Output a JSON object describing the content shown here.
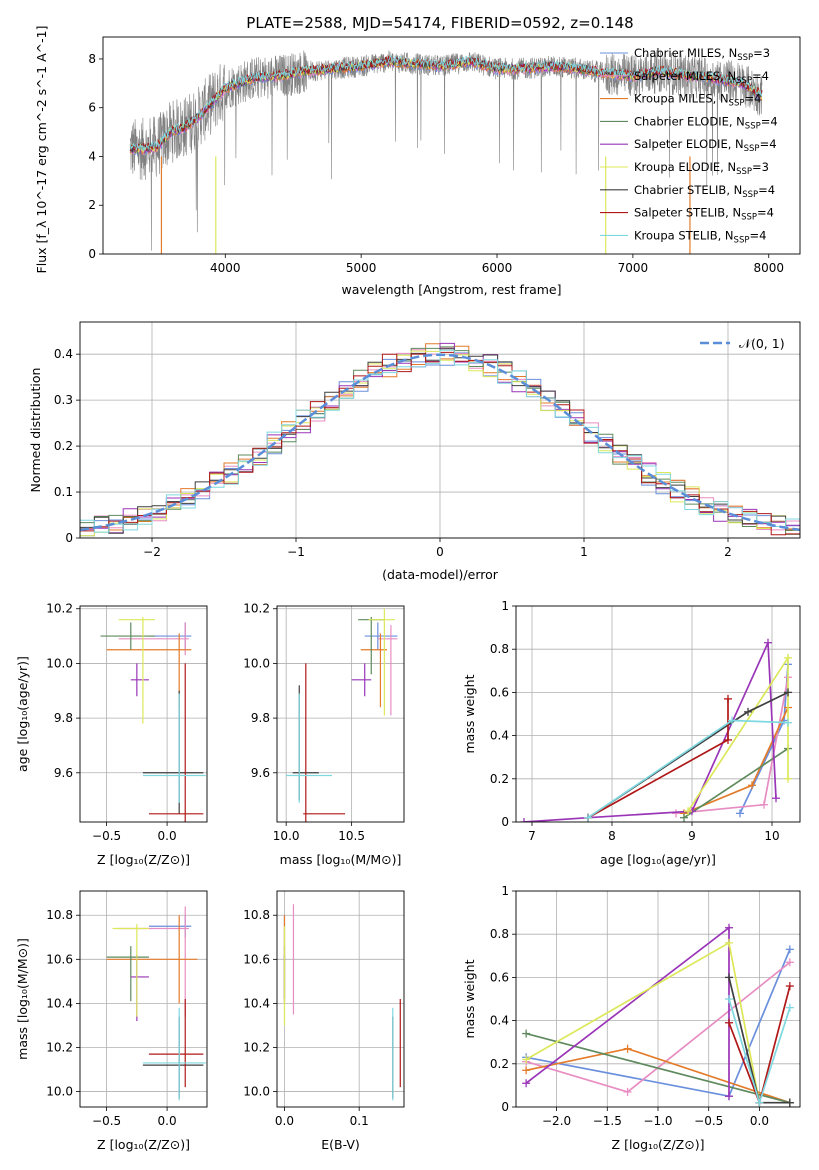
{
  "figure": {
    "title": "PLATE=2588, MJD=54174, FIBERID=0592, z=0.148"
  },
  "models": [
    {
      "name": "Chabrier MILES",
      "n_ssp": "3",
      "color": "#6a8fdc"
    },
    {
      "name": "Salpeter MILES",
      "n_ssp": "4",
      "color": "#e88dc2"
    },
    {
      "name": "Kroupa MILES",
      "n_ssp": "4",
      "color": "#e37b2a"
    },
    {
      "name": "Chabrier ELODIE",
      "n_ssp": "4",
      "color": "#5e8a5e"
    },
    {
      "name": "Salpeter ELODIE",
      "n_ssp": "4",
      "color": "#9a35b8"
    },
    {
      "name": "Kroupa ELODIE",
      "n_ssp": "3",
      "color": "#dce85a"
    },
    {
      "name": "Chabrier STELIB",
      "n_ssp": "4",
      "color": "#3f3f3f"
    },
    {
      "name": "Salpeter STELIB",
      "n_ssp": "4",
      "color": "#b01818"
    },
    {
      "name": "Kroupa STELIB",
      "n_ssp": "4",
      "color": "#7fd8e0"
    }
  ],
  "chart_data": [
    {
      "id": "spectrum",
      "type": "line",
      "xlabel": "wavelength [Angstrom, rest frame]",
      "ylabel": "Flux [f_λ 10^-17 erg cm^-2 s^-1 A^-1]",
      "xlim": [
        3100,
        8230
      ],
      "ylim": [
        0,
        8.9
      ],
      "xticks": [
        4000,
        5000,
        6000,
        7000,
        8000
      ],
      "yticks": [
        0,
        2,
        4,
        6,
        8
      ],
      "legend_position": "right",
      "data_series": {
        "name": "data",
        "color": "#808080",
        "x": [
          3300,
          3400,
          3500,
          3600,
          3700,
          3800,
          3900,
          4000,
          4100,
          4200,
          4400,
          4600,
          4800,
          5000,
          5200,
          5400,
          5600,
          5800,
          6000,
          6200,
          6400,
          6600,
          6800,
          7000,
          7200,
          7400,
          7600,
          7800,
          7950
        ],
        "y": [
          4.3,
          4.3,
          4.4,
          5.0,
          5.2,
          5.6,
          6.2,
          6.8,
          7.0,
          7.2,
          7.3,
          7.5,
          7.6,
          7.7,
          7.9,
          7.8,
          7.7,
          7.9,
          7.6,
          7.6,
          7.7,
          7.6,
          7.4,
          7.3,
          7.5,
          7.3,
          7.2,
          7.0,
          6.5
        ]
      },
      "model_curve": {
        "x": [
          3300,
          3400,
          3500,
          3600,
          3700,
          3800,
          3900,
          4000,
          4100,
          4200,
          4400,
          4600,
          4800,
          5000,
          5200,
          5400,
          5600,
          5800,
          6000,
          6200,
          6400,
          6600,
          6800,
          7000,
          7200,
          7400,
          7600,
          7800,
          7950
        ],
        "y": [
          4.3,
          4.3,
          4.4,
          5.0,
          5.2,
          5.6,
          6.2,
          6.8,
          7.0,
          7.2,
          7.3,
          7.5,
          7.6,
          7.7,
          7.9,
          7.8,
          7.7,
          7.9,
          7.6,
          7.6,
          7.7,
          7.6,
          7.4,
          7.3,
          7.5,
          7.3,
          7.2,
          7.0,
          6.5
        ]
      }
    },
    {
      "id": "residuals",
      "type": "histogram",
      "xlabel": "(data-model)/error",
      "ylabel": "Normed distribution",
      "xlim": [
        -2.5,
        2.5
      ],
      "ylim": [
        0,
        0.47
      ],
      "xticks": [
        -2,
        -1,
        0,
        1,
        2
      ],
      "yticks": [
        0.0,
        0.1,
        0.2,
        0.3,
        0.4
      ],
      "grid": true,
      "legend": "N(0,1)",
      "legend_position": "top-right",
      "gaussian_color": "#5b8ed8"
    },
    {
      "id": "age_vs_z",
      "type": "errorbar",
      "xlabel": "Z [log10(Z/Z⊙)]",
      "ylabel": "age [log10(age/yr)]",
      "xlim": [
        -0.72,
        0.33
      ],
      "ylim": [
        9.42,
        10.21
      ],
      "xticks": [
        -0.5,
        0.0
      ],
      "xticklabels": [
        "−0.5",
        "0.0"
      ],
      "yticks": [
        9.6,
        9.8,
        10.0,
        10.2
      ],
      "yticklabels": [
        "9.6",
        "9.8",
        "10.0",
        "10.2"
      ]
    },
    {
      "id": "age_vs_mass",
      "type": "errorbar",
      "xlabel": "mass [log10(M/M⊙)]",
      "xlim": [
        9.93,
        10.9
      ],
      "ylim": [
        9.42,
        10.21
      ],
      "xticks": [
        10.0,
        10.5
      ],
      "xticklabels": [
        "10.0",
        "10.5"
      ],
      "yticks": [
        9.6,
        9.8,
        10.0,
        10.2
      ],
      "yticklabels": [
        "9.6",
        "9.8",
        "10.0",
        "10.2"
      ]
    },
    {
      "id": "weight_vs_age",
      "type": "line",
      "xlabel": "age [log10(age/yr)]",
      "ylabel": "mass weight",
      "xlim": [
        6.8,
        10.35
      ],
      "ylim": [
        0,
        1
      ],
      "xticks": [
        7,
        8,
        9,
        10
      ],
      "yticks": [
        0.0,
        0.2,
        0.4,
        0.6,
        0.8,
        1.0
      ],
      "series": [
        {
          "color": "#6a8fdc",
          "x": [
            9.6,
            10.15,
            10.2
          ],
          "y": [
            0.04,
            0.47,
            0.73
          ]
        },
        {
          "color": "#e88dc2",
          "x": [
            8.8,
            9.9,
            10.2
          ],
          "y": [
            0.04,
            0.08,
            0.67
          ]
        },
        {
          "color": "#e37b2a",
          "x": [
            8.9,
            9.75,
            10.2
          ],
          "y": [
            0.04,
            0.17,
            0.53
          ]
        },
        {
          "color": "#5e8a5e",
          "x": [
            8.9,
            10.2
          ],
          "y": [
            0.02,
            0.34
          ]
        },
        {
          "color": "#9a35b8",
          "x": [
            6.9,
            7.7,
            9.0,
            9.95,
            10.05
          ],
          "y": [
            0.0,
            0.02,
            0.05,
            0.83,
            0.11
          ]
        },
        {
          "color": "#dce85a",
          "x": [
            8.95,
            10.2,
            10.2
          ],
          "y": [
            0.05,
            0.76,
            0.2
          ]
        },
        {
          "color": "#3f3f3f",
          "x": [
            7.7,
            9.7,
            10.2
          ],
          "y": [
            0.02,
            0.51,
            0.6
          ]
        },
        {
          "color": "#b01818",
          "x": [
            7.7,
            9.45,
            9.45
          ],
          "y": [
            0.02,
            0.38,
            0.57
          ]
        },
        {
          "color": "#7fd8e0",
          "x": [
            7.7,
            9.5,
            10.2
          ],
          "y": [
            0.02,
            0.47,
            0.46
          ]
        }
      ]
    },
    {
      "id": "mass_vs_z",
      "type": "errorbar",
      "xlabel": "Z [log10(Z/Z⊙)]",
      "ylabel": "mass [log10(M/M⊙)]",
      "xlim": [
        -0.72,
        0.33
      ],
      "ylim": [
        9.93,
        10.91
      ],
      "xticks": [
        -0.5,
        0.0
      ],
      "xticklabels": [
        "−0.5",
        "0.0"
      ],
      "yticks": [
        10.0,
        10.2,
        10.4,
        10.6,
        10.8
      ],
      "yticklabels": [
        "10.0",
        "10.2",
        "10.4",
        "10.6",
        "10.8"
      ]
    },
    {
      "id": "mass_vs_ebv",
      "type": "errorbar",
      "xlabel": "E(B-V)",
      "xlim": [
        -0.01,
        0.16
      ],
      "ylim": [
        9.93,
        10.91
      ],
      "xticks": [
        0.0,
        0.1
      ],
      "xticklabels": [
        "0.0",
        "0.1"
      ],
      "yticks": [
        10.0,
        10.2,
        10.4,
        10.6,
        10.8
      ],
      "yticklabels": [
        "10.0",
        "10.2",
        "10.4",
        "10.6",
        "10.8"
      ]
    },
    {
      "id": "weight_vs_z",
      "type": "line",
      "xlabel": "Z [log10(Z/Z⊙)]",
      "ylabel": "mass weight",
      "xlim": [
        -2.4,
        0.4
      ],
      "ylim": [
        0,
        1
      ],
      "xticks": [
        -2.0,
        -1.5,
        -1.0,
        -0.5,
        0.0
      ],
      "xticklabels": [
        "−2.0",
        "−1.5",
        "−1.0",
        "−0.5",
        "0.0"
      ],
      "yticks": [
        0.0,
        0.2,
        0.4,
        0.6,
        0.8,
        1.0
      ],
      "series": [
        {
          "color": "#6a8fdc",
          "x": [
            -2.3,
            -0.3,
            0.3
          ],
          "y": [
            0.23,
            0.05,
            0.73
          ]
        },
        {
          "color": "#e88dc2",
          "x": [
            -2.3,
            -1.3,
            0.3
          ],
          "y": [
            0.21,
            0.07,
            0.67
          ]
        },
        {
          "color": "#e37b2a",
          "x": [
            -2.3,
            -1.3,
            0.3
          ],
          "y": [
            0.17,
            0.27,
            0.02
          ]
        },
        {
          "color": "#5e8a5e",
          "x": [
            -2.3,
            0.3,
            0.3
          ],
          "y": [
            0.34,
            0.02,
            0.02
          ]
        },
        {
          "color": "#9a35b8",
          "x": [
            -2.3,
            -0.3,
            -0.3
          ],
          "y": [
            0.11,
            0.83,
            0.05
          ]
        },
        {
          "color": "#dce85a",
          "x": [
            -2.3,
            -0.3,
            0.0
          ],
          "y": [
            0.22,
            0.76,
            0.02
          ]
        },
        {
          "color": "#3f3f3f",
          "x": [
            -0.3,
            0.0,
            0.3
          ],
          "y": [
            0.6,
            0.02,
            0.02
          ]
        },
        {
          "color": "#b01818",
          "x": [
            -0.3,
            0.0,
            0.3
          ],
          "y": [
            0.39,
            0.02,
            0.56
          ]
        },
        {
          "color": "#7fd8e0",
          "x": [
            -0.3,
            0.0,
            0.3
          ],
          "y": [
            0.5,
            0.02,
            0.46
          ]
        }
      ]
    }
  ]
}
